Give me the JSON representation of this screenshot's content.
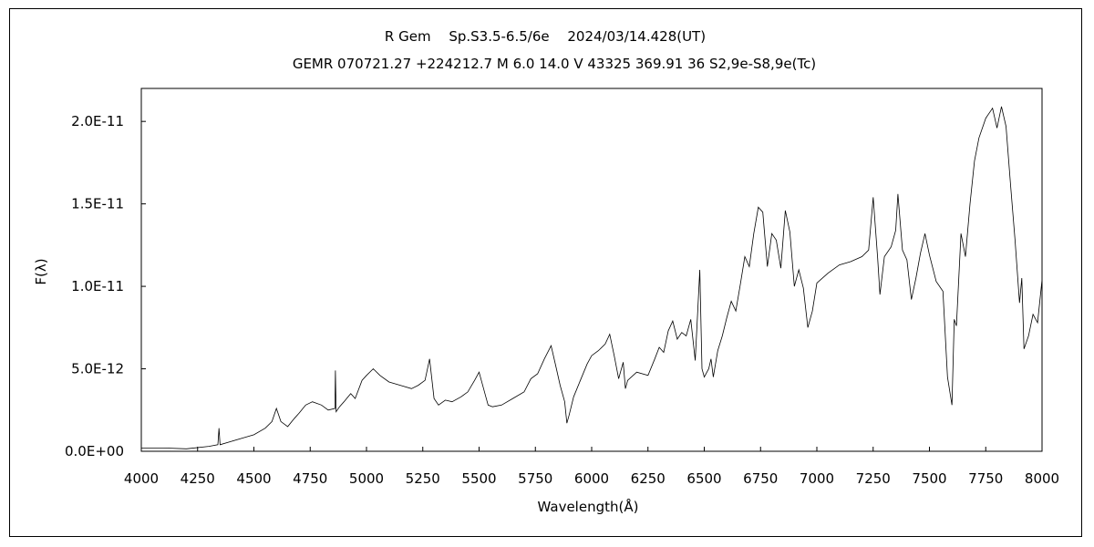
{
  "chart_data": {
    "type": "line",
    "title": "R Gem　 Sp.S3.5-6.5/6e　 2024/03/14.428(UT)",
    "subtitle": "GEMR 070721.27 +224212.7 M 6.0 14.0 V 43325 369.91 36 S2,9e-S8,9e(Tc)",
    "xlabel": "Wavelength(Å)",
    "ylabel": "F(λ)",
    "xlim": [
      4000,
      8000
    ],
    "ylim": [
      0,
      2.2e-11
    ],
    "x_ticks": [
      4000,
      4250,
      4500,
      4750,
      5000,
      5250,
      5500,
      5750,
      6000,
      6250,
      6500,
      6750,
      7000,
      7250,
      7500,
      7750,
      8000
    ],
    "y_ticks": [
      0,
      5e-12,
      1e-11,
      1.5e-11,
      2e-11
    ],
    "y_tick_labels": [
      "0.0E+00",
      "5.0E-12",
      "1.0E-11",
      "1.5E-11",
      "2.0E-11"
    ],
    "grid": false,
    "legend": "none",
    "line_color": "#000000",
    "series": [
      {
        "x": [
          4000,
          4100,
          4200,
          4300,
          4340,
          4345,
          4350,
          4400,
          4450,
          4500,
          4550,
          4580,
          4600,
          4620,
          4650,
          4680,
          4700,
          4730,
          4760,
          4800,
          4830,
          4860,
          4862,
          4865,
          4880,
          4900,
          4930,
          4950,
          4980,
          5000,
          5030,
          5060,
          5100,
          5150,
          5200,
          5230,
          5260,
          5280,
          5300,
          5320,
          5350,
          5380,
          5420,
          5450,
          5480,
          5500,
          5530,
          5540,
          5560,
          5600,
          5650,
          5700,
          5730,
          5760,
          5790,
          5820,
          5840,
          5860,
          5880,
          5890,
          5900,
          5920,
          5950,
          5980,
          6000,
          6030,
          6060,
          6080,
          6100,
          6120,
          6140,
          6150,
          6160,
          6200,
          6250,
          6280,
          6300,
          6320,
          6340,
          6360,
          6380,
          6400,
          6420,
          6440,
          6460,
          6480,
          6490,
          6500,
          6520,
          6530,
          6540,
          6560,
          6580,
          6600,
          6620,
          6640,
          6660,
          6680,
          6700,
          6720,
          6740,
          6760,
          6780,
          6800,
          6820,
          6840,
          6860,
          6880,
          6900,
          6920,
          6940,
          6960,
          6980,
          7000,
          7050,
          7100,
          7150,
          7200,
          7230,
          7250,
          7270,
          7280,
          7300,
          7330,
          7350,
          7360,
          7380,
          7400,
          7420,
          7440,
          7460,
          7480,
          7500,
          7530,
          7560,
          7580,
          7600,
          7610,
          7620,
          7640,
          7660,
          7680,
          7700,
          7720,
          7750,
          7780,
          7800,
          7820,
          7840,
          7860,
          7880,
          7900,
          7910,
          7920,
          7940,
          7960,
          7980,
          8000
        ],
        "y": [
          2e-13,
          2e-13,
          1.5e-13,
          3e-13,
          4e-13,
          1.4e-12,
          4e-13,
          6e-13,
          8e-13,
          1e-12,
          1.4e-12,
          1.8e-12,
          2.6e-12,
          1.8e-12,
          1.5e-12,
          2e-12,
          2.3e-12,
          2.8e-12,
          3e-12,
          2.8e-12,
          2.5e-12,
          2.6e-12,
          4.9e-12,
          2.4e-12,
          2.7e-12,
          3e-12,
          3.5e-12,
          3.2e-12,
          4.3e-12,
          4.6e-12,
          5e-12,
          4.6e-12,
          4.2e-12,
          4e-12,
          3.8e-12,
          4e-12,
          4.3e-12,
          5.6e-12,
          3.2e-12,
          2.8e-12,
          3.1e-12,
          3e-12,
          3.3e-12,
          3.6e-12,
          4.3e-12,
          4.8e-12,
          3.3e-12,
          2.8e-12,
          2.7e-12,
          2.8e-12,
          3.2e-12,
          3.6e-12,
          4.4e-12,
          4.7e-12,
          5.6e-12,
          6.4e-12,
          5.2e-12,
          4e-12,
          3e-12,
          1.7e-12,
          2.2e-12,
          3.3e-12,
          4.3e-12,
          5.3e-12,
          5.8e-12,
          6.1e-12,
          6.5e-12,
          7.1e-12,
          5.8e-12,
          4.4e-12,
          5.4e-12,
          3.8e-12,
          4.3e-12,
          4.8e-12,
          4.6e-12,
          5.6e-12,
          6.3e-12,
          6e-12,
          7.3e-12,
          7.9e-12,
          6.8e-12,
          7.2e-12,
          7e-12,
          8e-12,
          5.5e-12,
          1.1e-11,
          5e-12,
          4.5e-12,
          5e-12,
          5.6e-12,
          4.5e-12,
          6.1e-12,
          7e-12,
          8.1e-12,
          9.1e-12,
          8.5e-12,
          1.01e-11,
          1.18e-11,
          1.12e-11,
          1.32e-11,
          1.48e-11,
          1.45e-11,
          1.12e-11,
          1.32e-11,
          1.28e-11,
          1.11e-11,
          1.46e-11,
          1.33e-11,
          1e-11,
          1.1e-11,
          9.9e-12,
          7.5e-12,
          8.5e-12,
          1.02e-11,
          1.08e-11,
          1.13e-11,
          1.15e-11,
          1.18e-11,
          1.22e-11,
          1.54e-11,
          1.17e-11,
          9.5e-12,
          1.18e-11,
          1.24e-11,
          1.34e-11,
          1.56e-11,
          1.22e-11,
          1.16e-11,
          9.2e-12,
          1.05e-11,
          1.2e-11,
          1.32e-11,
          1.19e-11,
          1.03e-11,
          9.7e-12,
          4.5e-12,
          2.8e-12,
          8e-12,
          7.6e-12,
          1.32e-11,
          1.18e-11,
          1.5e-11,
          1.76e-11,
          1.9e-11,
          2.02e-11,
          2.08e-11,
          1.96e-11,
          2.09e-11,
          1.97e-11,
          1.62e-11,
          1.28e-11,
          9e-12,
          1.05e-11,
          6.2e-12,
          7e-12,
          8.3e-12,
          7.8e-12,
          1.04e-11
        ]
      }
    ]
  }
}
